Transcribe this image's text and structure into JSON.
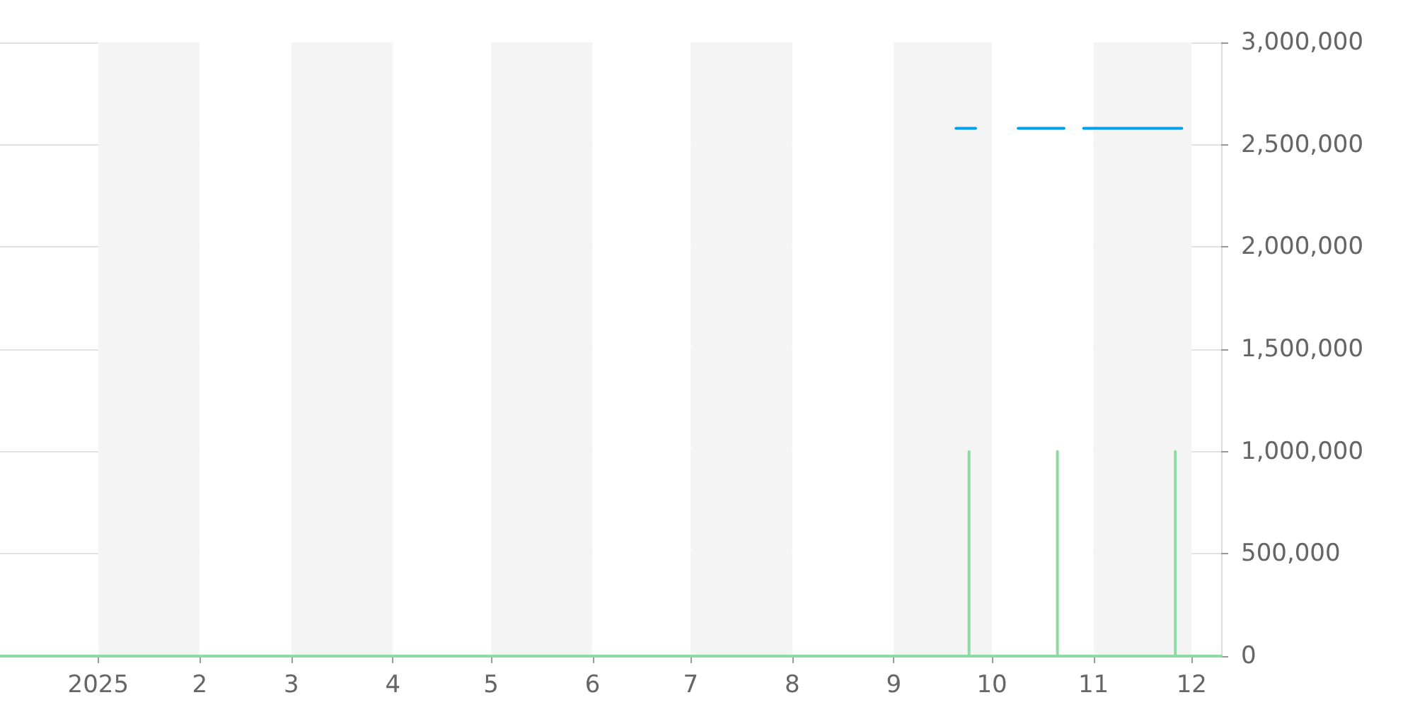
{
  "chart_data": {
    "type": "line",
    "xlim": [
      "2024-12-02",
      "2025-12-10"
    ],
    "xticks": [
      {
        "value": "2025-01-01",
        "label": "2025"
      },
      {
        "value": "2025-02-01",
        "label": "2"
      },
      {
        "value": "2025-03-01",
        "label": "3"
      },
      {
        "value": "2025-04-01",
        "label": "4"
      },
      {
        "value": "2025-05-01",
        "label": "5"
      },
      {
        "value": "2025-06-01",
        "label": "6"
      },
      {
        "value": "2025-07-01",
        "label": "7"
      },
      {
        "value": "2025-08-01",
        "label": "8"
      },
      {
        "value": "2025-09-01",
        "label": "9"
      },
      {
        "value": "2025-10-01",
        "label": "10"
      },
      {
        "value": "2025-11-01",
        "label": "11"
      },
      {
        "value": "2025-12-01",
        "label": "12"
      }
    ],
    "ylim": [
      0,
      3000000
    ],
    "yticks": [
      {
        "value": 0,
        "label": "0"
      },
      {
        "value": 500000,
        "label": "500,000"
      },
      {
        "value": 1000000,
        "label": "1,000,000"
      },
      {
        "value": 1500000,
        "label": "1,500,000"
      },
      {
        "value": 2000000,
        "label": "2,000,000"
      },
      {
        "value": 2500000,
        "label": "2,500,000"
      },
      {
        "value": 3000000,
        "label": "3,000,000"
      }
    ],
    "grid": "y",
    "marker": "none",
    "line_style": "solid",
    "series": [
      {
        "color": "#00a0e9",
        "x": [
          "2025-09-20",
          "2025-09-26",
          "2025-10-01",
          "2025-10-09",
          "2025-10-23",
          "2025-10-26",
          "2025-10-29",
          "2025-11-28"
        ],
        "values": [
          2580000,
          2580000,
          null,
          2580000,
          2580000,
          null,
          2580000,
          2580000
        ]
      },
      {
        "color": "#8fd9a4",
        "x": [
          "2024-12-02",
          "2025-09-24",
          "2025-09-24",
          "2025-09-24",
          "2025-10-21",
          "2025-10-21",
          "2025-10-21",
          "2025-11-26",
          "2025-11-26",
          "2025-11-26",
          "2025-12-10"
        ],
        "values": [
          0,
          0,
          1000000,
          0,
          0,
          1000000,
          0,
          0,
          1000000,
          0,
          0
        ]
      }
    ]
  }
}
